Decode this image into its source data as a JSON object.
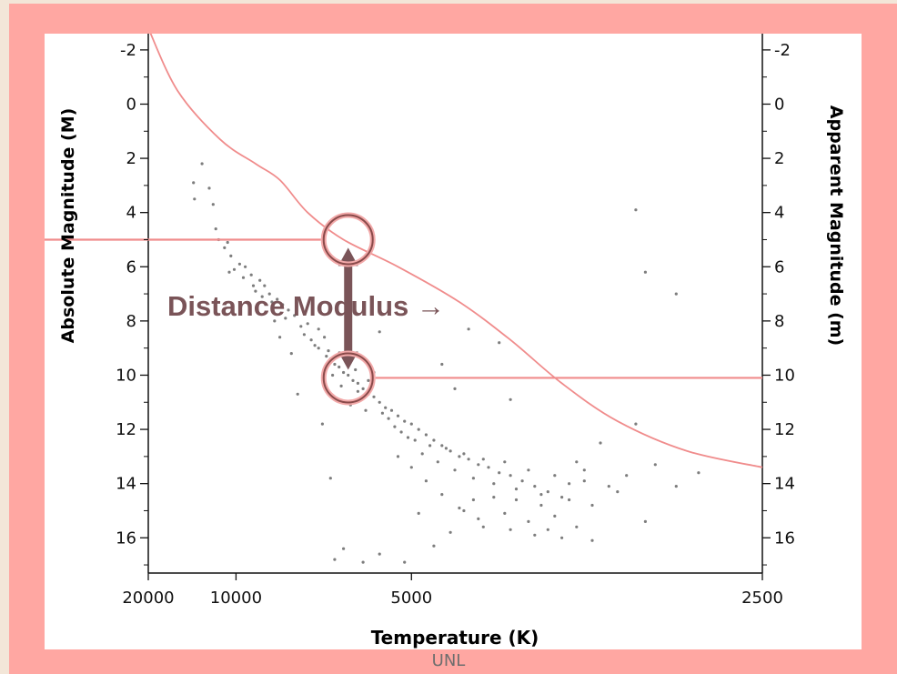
{
  "chart_data": {
    "type": "scatter",
    "xlabel": "Temperature (K)",
    "ylabel": "Absolute Magnitude (M)",
    "y2label": "Apparent Magnitude (m)",
    "x_scale": "reciprocal",
    "x_ticks": [
      20000,
      10000,
      5000,
      2500
    ],
    "xlim": [
      20000,
      2500
    ],
    "y_ticks": [
      -2,
      0,
      2,
      4,
      6,
      8,
      10,
      12,
      14,
      16
    ],
    "ylim": [
      -2.6,
      17.3
    ],
    "y_inverted": true,
    "y2_ticks": [
      -2,
      0,
      2,
      4,
      6,
      8,
      10,
      12,
      14,
      16
    ],
    "annotation": "Distance Modulus →",
    "reference_line": {
      "name": "",
      "points": [
        [
          20000,
          -2.8
        ],
        [
          15000,
          -0.5
        ],
        [
          11000,
          1.3
        ],
        [
          9000,
          2.2
        ],
        [
          8000,
          2.8
        ],
        [
          7100,
          4.0
        ],
        [
          6200,
          5.0
        ],
        [
          5200,
          6.0
        ],
        [
          4400,
          7.3
        ],
        [
          3900,
          8.7
        ],
        [
          3500,
          10.3
        ],
        [
          3150,
          11.7
        ],
        [
          2800,
          12.8
        ],
        [
          2500,
          13.4
        ]
      ]
    },
    "markers": [
      {
        "temperature": 6100,
        "magnitude": 5.0
      },
      {
        "temperature": 6100,
        "magnitude": 10.1
      }
    ],
    "guide_lines": [
      {
        "from_temperature": 20000,
        "to_temperature": 6100,
        "magnitude": 5.0
      },
      {
        "from_temperature": 6100,
        "to_temperature": 2500,
        "magnitude": 10.1
      }
    ],
    "arrow": {
      "temperature": 6100,
      "from_magnitude": 5.3,
      "to_magnitude": 9.8
    },
    "points": [
      [
        13200,
        2.9
      ],
      [
        12400,
        2.2
      ],
      [
        11800,
        3.1
      ],
      [
        13100,
        3.5
      ],
      [
        11500,
        3.7
      ],
      [
        11300,
        4.6
      ],
      [
        11100,
        5.0
      ],
      [
        10500,
        5.1
      ],
      [
        10300,
        5.6
      ],
      [
        9800,
        5.9
      ],
      [
        9500,
        6.0
      ],
      [
        10400,
        6.2
      ],
      [
        9200,
        6.3
      ],
      [
        8800,
        6.5
      ],
      [
        8600,
        6.7
      ],
      [
        9000,
        6.9
      ],
      [
        8400,
        7.0
      ],
      [
        8100,
        7.2
      ],
      [
        7900,
        7.4
      ],
      [
        7700,
        7.6
      ],
      [
        7500,
        7.8
      ],
      [
        8200,
        8.0
      ],
      [
        7300,
        8.2
      ],
      [
        7200,
        8.5
      ],
      [
        8000,
        8.6
      ],
      [
        7000,
        8.7
      ],
      [
        6900,
        8.9
      ],
      [
        6800,
        9.0
      ],
      [
        7600,
        9.2
      ],
      [
        6600,
        9.3
      ],
      [
        6500,
        9.4
      ],
      [
        6400,
        9.6
      ],
      [
        6300,
        9.7
      ],
      [
        6200,
        9.9
      ],
      [
        6100,
        10.0
      ],
      [
        6000,
        10.2
      ],
      [
        5900,
        10.3
      ],
      [
        5800,
        10.5
      ],
      [
        5700,
        10.7
      ],
      [
        5600,
        10.8
      ],
      [
        5500,
        11.0
      ],
      [
        5400,
        11.2
      ],
      [
        5300,
        11.3
      ],
      [
        5200,
        11.5
      ],
      [
        5100,
        11.7
      ],
      [
        5000,
        11.8
      ],
      [
        4900,
        12.0
      ],
      [
        4800,
        12.2
      ],
      [
        4700,
        12.4
      ],
      [
        4600,
        12.6
      ],
      [
        4500,
        12.8
      ],
      [
        4400,
        13.0
      ],
      [
        4300,
        13.1
      ],
      [
        4200,
        13.3
      ],
      [
        4100,
        13.4
      ],
      [
        4000,
        13.6
      ],
      [
        3900,
        13.7
      ],
      [
        3800,
        13.9
      ],
      [
        3700,
        14.1
      ],
      [
        3600,
        14.3
      ],
      [
        3500,
        14.5
      ],
      [
        5050,
        12.3
      ],
      [
        4850,
        12.9
      ],
      [
        4650,
        13.2
      ],
      [
        4450,
        13.5
      ],
      [
        4250,
        13.8
      ],
      [
        4050,
        14.0
      ],
      [
        3850,
        14.2
      ],
      [
        3650,
        14.4
      ],
      [
        3450,
        14.6
      ],
      [
        5200,
        13.0
      ],
      [
        5000,
        13.4
      ],
      [
        4800,
        13.9
      ],
      [
        4600,
        14.4
      ],
      [
        4400,
        14.9
      ],
      [
        4200,
        15.3
      ],
      [
        3900,
        15.7
      ],
      [
        3700,
        15.9
      ],
      [
        3550,
        15.2
      ],
      [
        3300,
        14.8
      ],
      [
        3200,
        14.1
      ],
      [
        3100,
        13.7
      ],
      [
        2950,
        13.3
      ],
      [
        2850,
        14.1
      ],
      [
        2750,
        13.6
      ],
      [
        3250,
        12.5
      ],
      [
        3050,
        11.8
      ],
      [
        3400,
        13.2
      ],
      [
        3350,
        13.9
      ],
      [
        3150,
        14.3
      ],
      [
        3000,
        15.4
      ],
      [
        6200,
        16.4
      ],
      [
        5800,
        16.9
      ],
      [
        5500,
        16.6
      ],
      [
        5100,
        16.9
      ],
      [
        6400,
        16.8
      ],
      [
        4700,
        16.3
      ],
      [
        4500,
        15.8
      ],
      [
        4900,
        15.1
      ],
      [
        6500,
        13.8
      ],
      [
        6700,
        11.8
      ],
      [
        7400,
        10.7
      ],
      [
        5600,
        9.9
      ],
      [
        4450,
        10.5
      ],
      [
        3900,
        10.9
      ],
      [
        4000,
        8.8
      ],
      [
        4300,
        8.3
      ],
      [
        5500,
        8.4
      ],
      [
        4600,
        9.6
      ],
      [
        3050,
        3.9
      ],
      [
        3000,
        6.2
      ],
      [
        2850,
        7.0
      ],
      [
        5700,
        10.2
      ],
      [
        5650,
        10.4
      ],
      [
        5900,
        10.6
      ],
      [
        5850,
        10.9
      ],
      [
        6050,
        11.1
      ],
      [
        5750,
        11.3
      ],
      [
        5450,
        11.4
      ],
      [
        5350,
        11.6
      ],
      [
        5250,
        11.9
      ],
      [
        5150,
        12.1
      ],
      [
        4950,
        12.4
      ],
      [
        4750,
        12.6
      ],
      [
        4550,
        12.7
      ],
      [
        4350,
        12.9
      ],
      [
        4150,
        13.1
      ],
      [
        3950,
        13.2
      ],
      [
        3750,
        13.5
      ],
      [
        3550,
        13.7
      ],
      [
        3350,
        13.5
      ],
      [
        3450,
        14.0
      ],
      [
        3650,
        14.8
      ],
      [
        3850,
        14.6
      ],
      [
        4050,
        14.5
      ],
      [
        4250,
        14.6
      ],
      [
        4350,
        15.0
      ],
      [
        4150,
        15.6
      ],
      [
        3950,
        15.1
      ],
      [
        3750,
        15.4
      ],
      [
        3600,
        15.7
      ],
      [
        3400,
        15.6
      ],
      [
        3300,
        16.1
      ],
      [
        3500,
        16.0
      ],
      [
        6800,
        8.3
      ],
      [
        6650,
        8.6
      ],
      [
        7100,
        8.1
      ],
      [
        7800,
        7.9
      ],
      [
        8300,
        7.3
      ],
      [
        8700,
        7.1
      ],
      [
        9100,
        6.7
      ],
      [
        9600,
        6.4
      ],
      [
        10100,
        6.1
      ],
      [
        10700,
        5.3
      ],
      [
        6300,
        9.2
      ],
      [
        6450,
        10.0
      ],
      [
        6550,
        9.1
      ],
      [
        6150,
        9.5
      ],
      [
        5950,
        9.8
      ],
      [
        6250,
        10.4
      ]
    ]
  },
  "credit": "UNL"
}
